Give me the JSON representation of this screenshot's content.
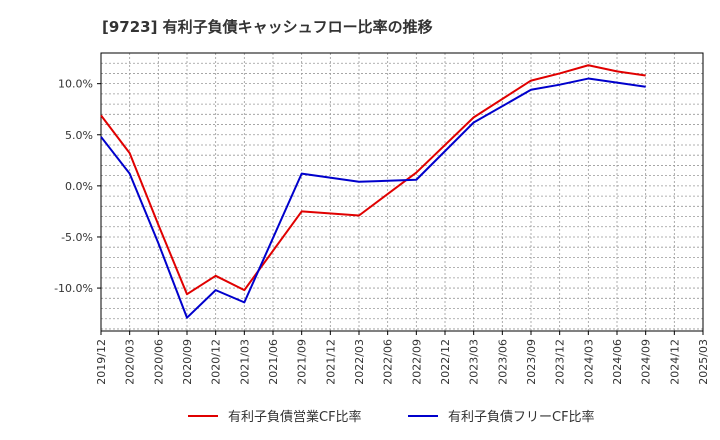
{
  "chart_data": {
    "type": "line",
    "title": "[9723]  有利子負債キャッシュフロー比率の推移",
    "x_ticks": [
      "2019/12",
      "2020/03",
      "2020/06",
      "2020/09",
      "2020/12",
      "2021/03",
      "2021/06",
      "2021/09",
      "2021/12",
      "2022/03",
      "2022/06",
      "2022/09",
      "2022/12",
      "2023/03",
      "2023/06",
      "2023/09",
      "2023/12",
      "2024/03",
      "2024/06",
      "2024/09",
      "2024/12",
      "2025/03"
    ],
    "y_ticks": [
      {
        "value": 10,
        "label": "10.0%"
      },
      {
        "value": 5,
        "label": "5.0%"
      },
      {
        "value": 0,
        "label": "0.0%"
      },
      {
        "value": -5,
        "label": "-5.0%"
      },
      {
        "value": -10,
        "label": "-10.0%"
      }
    ],
    "ylim": [
      -14.2,
      13.0
    ],
    "grid": true,
    "legend_position": "bottom",
    "series": [
      {
        "name": "有利子負債営業CF比率",
        "color": "#e00000",
        "points": [
          {
            "x": "2019/12",
            "y": 6.9
          },
          {
            "x": "2020/03",
            "y": 3.2
          },
          {
            "x": "2020/06",
            "y": -3.8
          },
          {
            "x": "2020/09",
            "y": -10.6
          },
          {
            "x": "2020/12",
            "y": -8.8
          },
          {
            "x": "2021/03",
            "y": -10.2
          },
          {
            "x": "2021/09",
            "y": -2.5
          },
          {
            "x": "2022/03",
            "y": -2.9
          },
          {
            "x": "2022/09",
            "y": 1.3
          },
          {
            "x": "2023/03",
            "y": 6.7
          },
          {
            "x": "2023/09",
            "y": 10.3
          },
          {
            "x": "2023/12",
            "y": 11.0
          },
          {
            "x": "2024/03",
            "y": 11.8
          },
          {
            "x": "2024/06",
            "y": 11.2
          },
          {
            "x": "2024/09",
            "y": 10.8
          }
        ]
      },
      {
        "name": "有利子負債フリーCF比率",
        "color": "#0000cc",
        "points": [
          {
            "x": "2019/12",
            "y": 4.8
          },
          {
            "x": "2020/03",
            "y": 1.2
          },
          {
            "x": "2020/06",
            "y": -5.6
          },
          {
            "x": "2020/09",
            "y": -12.9
          },
          {
            "x": "2020/12",
            "y": -10.2
          },
          {
            "x": "2021/03",
            "y": -11.4
          },
          {
            "x": "2021/09",
            "y": 1.2
          },
          {
            "x": "2022/03",
            "y": 0.4
          },
          {
            "x": "2022/09",
            "y": 0.6
          },
          {
            "x": "2023/03",
            "y": 6.2
          },
          {
            "x": "2023/09",
            "y": 9.4
          },
          {
            "x": "2023/12",
            "y": 9.9
          },
          {
            "x": "2024/03",
            "y": 10.5
          },
          {
            "x": "2024/06",
            "y": 10.1
          },
          {
            "x": "2024/09",
            "y": 9.7
          }
        ]
      }
    ]
  }
}
